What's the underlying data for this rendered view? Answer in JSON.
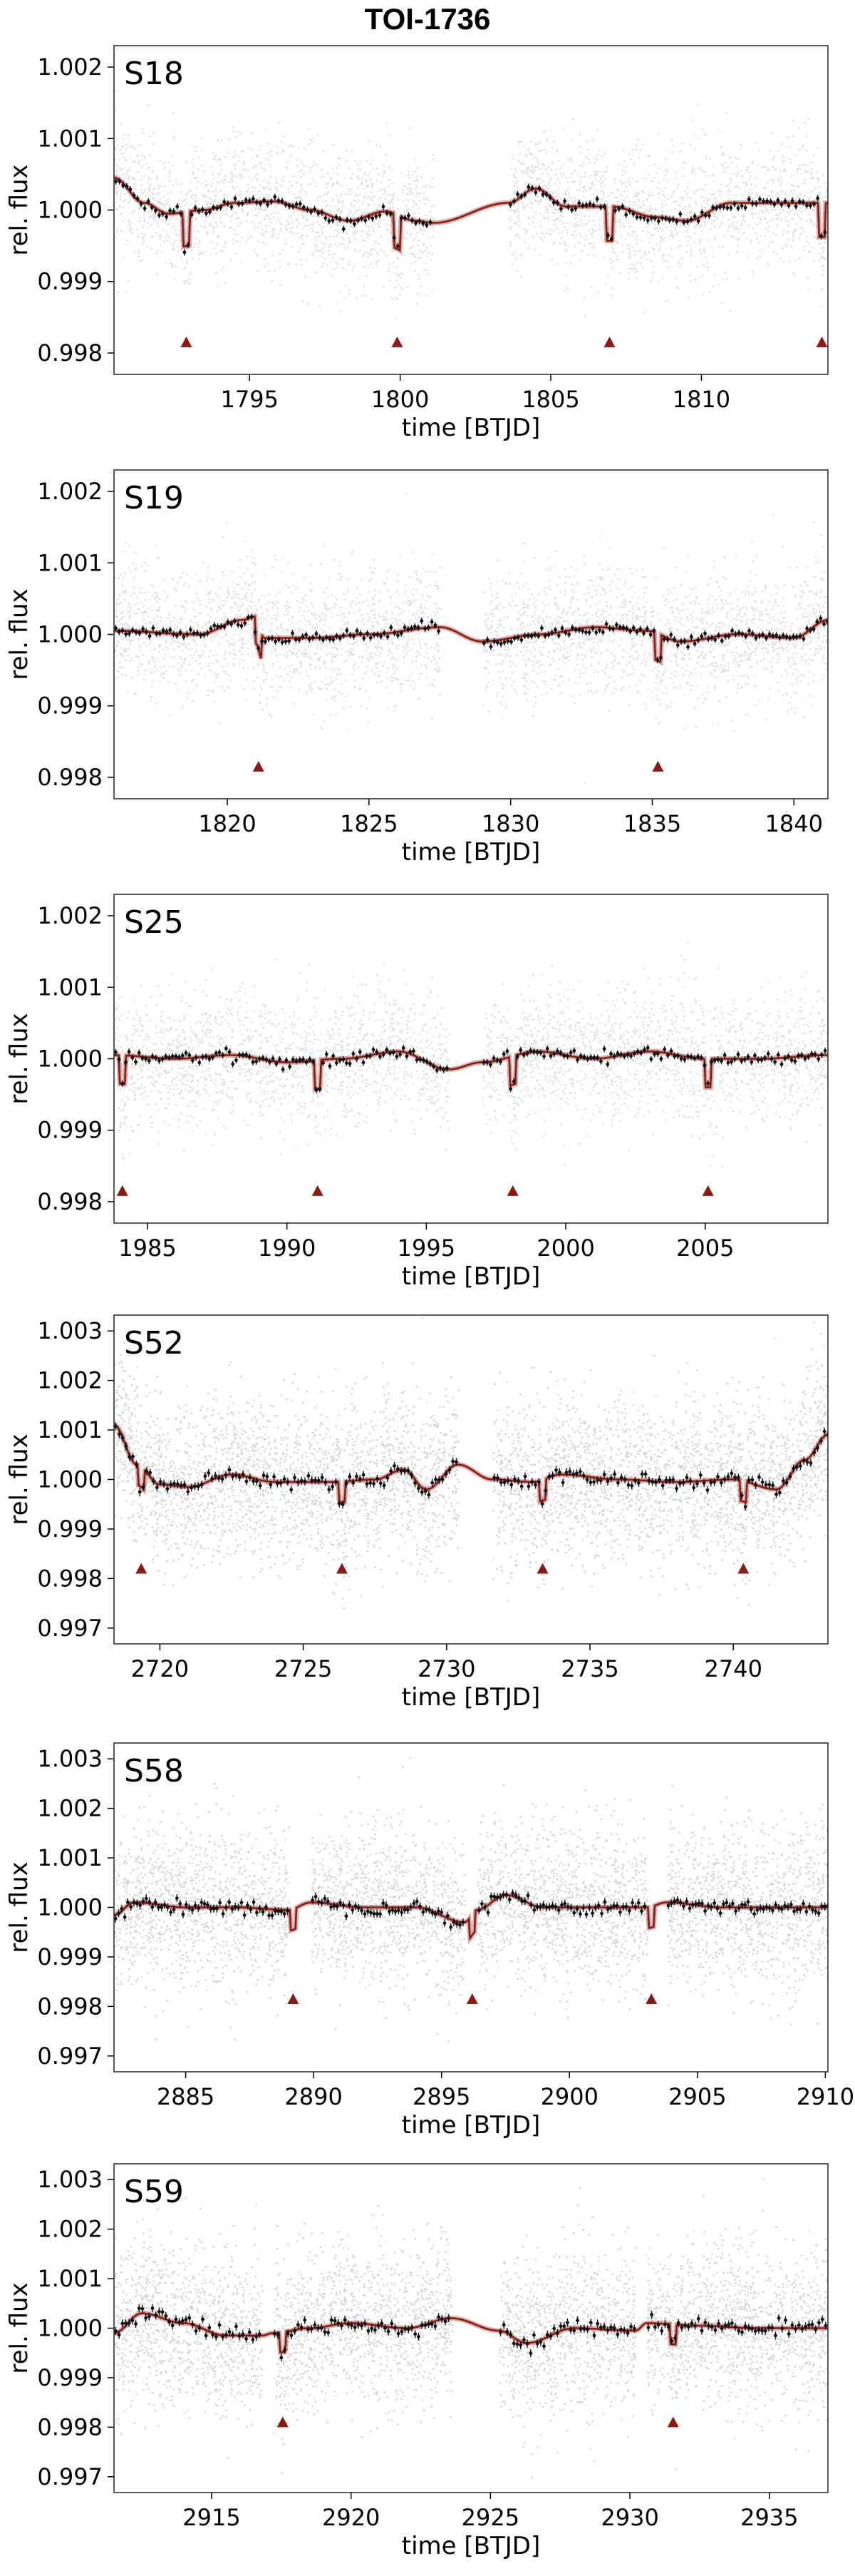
{
  "title": "TOI-1736",
  "colors": {
    "model": "#8b1a12",
    "transit_marker": "#8b1a12",
    "raw_points": "#9a9a9a",
    "binned_points": "#111111",
    "frame": "#333333"
  },
  "chart_data": [
    {
      "type": "scatter",
      "sector_label": "S18",
      "xlabel": "time [BTJD]",
      "ylabel": "rel. flux",
      "xlim": [
        1790.5,
        1814.2
      ],
      "ylim": [
        0.9977,
        1.0023
      ],
      "xticks": [
        1795,
        1800,
        1805,
        1810
      ],
      "yticks": [
        0.998,
        0.999,
        1.0,
        1.001,
        1.002
      ],
      "ytick_labels": [
        "0.998",
        "0.999",
        "1.000",
        "1.001",
        "1.002"
      ],
      "segments": [
        [
          1790.5,
          1801.1
        ],
        [
          1803.6,
          1814.2
        ]
      ],
      "raw_scatter_sigma": 0.00045,
      "transit_times": [
        1792.9,
        1799.9,
        1806.95,
        1814.0
      ],
      "transit_depth": 0.00048,
      "transit_marker_y": 0.99815,
      "trend_knots": [
        [
          1790.5,
          1.00045
        ],
        [
          1791.5,
          1.0001
        ],
        [
          1792.3,
          0.99995
        ],
        [
          1793.5,
          1.0
        ],
        [
          1794.5,
          1.0001
        ],
        [
          1795.8,
          1.00012
        ],
        [
          1797,
          1.0
        ],
        [
          1798.3,
          0.99985
        ],
        [
          1799.5,
          0.99998
        ],
        [
          1800.5,
          0.99985
        ],
        [
          1801.1,
          0.99982
        ],
        [
          1803.6,
          1.0001
        ],
        [
          1804.5,
          1.0003
        ],
        [
          1805.5,
          1.00005
        ],
        [
          1807,
          1.00005
        ],
        [
          1808.5,
          0.9999
        ],
        [
          1809.5,
          0.99985
        ],
        [
          1811,
          1.0001
        ],
        [
          1813,
          1.0001
        ],
        [
          1814.2,
          1.0001
        ]
      ]
    },
    {
      "type": "scatter",
      "sector_label": "S19",
      "xlabel": "time [BTJD]",
      "ylabel": "rel. flux",
      "xlim": [
        1816.0,
        1841.2
      ],
      "ylim": [
        0.9977,
        1.0023
      ],
      "xticks": [
        1820,
        1825,
        1830,
        1835,
        1840
      ],
      "yticks": [
        0.998,
        0.999,
        1.0,
        1.001,
        1.002
      ],
      "ytick_labels": [
        "0.998",
        "0.999",
        "1.000",
        "1.001",
        "1.002"
      ],
      "segments": [
        [
          1816.0,
          1827.5
        ],
        [
          1829.0,
          1841.2
        ]
      ],
      "raw_scatter_sigma": 0.00045,
      "transit_times": [
        1821.1,
        1835.2
      ],
      "transit_depth": 0.00038,
      "transit_marker_y": 0.99815,
      "trend_knots": [
        [
          1816,
          1.00005
        ],
        [
          1819,
          1.0
        ],
        [
          1820.5,
          1.0002
        ],
        [
          1821,
          1.00025
        ],
        [
          1821.3,
          0.99995
        ],
        [
          1823,
          0.99995
        ],
        [
          1825,
          1.0
        ],
        [
          1827.5,
          1.0001
        ],
        [
          1829,
          0.9999
        ],
        [
          1831,
          1.0
        ],
        [
          1833,
          1.0001
        ],
        [
          1834.8,
          1.00005
        ],
        [
          1836,
          0.9999
        ],
        [
          1838,
          1.0
        ],
        [
          1840,
          0.99995
        ],
        [
          1841.2,
          1.0002
        ]
      ]
    },
    {
      "type": "scatter",
      "sector_label": "S25",
      "xlabel": "time [BTJD]",
      "ylabel": "rel. flux",
      "xlim": [
        1983.8,
        2009.4
      ],
      "ylim": [
        0.9977,
        1.0023
      ],
      "xticks": [
        1985,
        1990,
        1995,
        2000,
        2005
      ],
      "yticks": [
        0.998,
        0.999,
        1.0,
        1.001,
        1.002
      ],
      "ytick_labels": [
        "0.998",
        "0.999",
        "1.000",
        "1.001",
        "1.002"
      ],
      "segments": [
        [
          1983.8,
          1995.8
        ],
        [
          1997.0,
          2009.4
        ]
      ],
      "raw_scatter_sigma": 0.00045,
      "transit_times": [
        1984.1,
        1991.1,
        1998.1,
        2005.1
      ],
      "transit_depth": 0.0004,
      "transit_marker_y": 0.99815,
      "trend_knots": [
        [
          1983.8,
          1.00005
        ],
        [
          1986,
          1.0
        ],
        [
          1988,
          1.00005
        ],
        [
          1990,
          0.99995
        ],
        [
          1992,
          1.0
        ],
        [
          1994,
          1.0001
        ],
        [
          1995.8,
          0.99985
        ],
        [
          1997,
          0.99995
        ],
        [
          1999,
          1.0001
        ],
        [
          2001,
          1.0
        ],
        [
          2003,
          1.0001
        ],
        [
          2005,
          1.0
        ],
        [
          2007,
          1.0
        ],
        [
          2009.4,
          1.00005
        ]
      ]
    },
    {
      "type": "scatter",
      "sector_label": "S52",
      "xlabel": "time [BTJD]",
      "ylabel": "rel. flux",
      "xlim": [
        2718.4,
        2743.3
      ],
      "ylim": [
        0.99668,
        1.00332
      ],
      "xticks": [
        2720,
        2725,
        2730,
        2735,
        2740
      ],
      "yticks": [
        0.997,
        0.998,
        0.999,
        1.0,
        1.001,
        1.002,
        1.003
      ],
      "ytick_labels": [
        "0.997",
        "0.998",
        "0.999",
        "1.000",
        "1.001",
        "1.002",
        "1.003"
      ],
      "segments": [
        [
          2718.4,
          2730.4
        ],
        [
          2731.6,
          2743.3
        ]
      ],
      "raw_scatter_sigma": 0.0008,
      "transit_times": [
        2719.35,
        2726.35,
        2733.35,
        2740.35
      ],
      "transit_depth": 0.00042,
      "transit_marker_y": 0.9982,
      "trend_knots": [
        [
          2718.4,
          1.0011
        ],
        [
          2719.2,
          1.0003
        ],
        [
          2720,
          0.9999
        ],
        [
          2721,
          0.99985
        ],
        [
          2722.5,
          1.0001
        ],
        [
          2724,
          0.99995
        ],
        [
          2726,
          0.99995
        ],
        [
          2727.5,
          1.0
        ],
        [
          2728.5,
          1.0002
        ],
        [
          2729.3,
          0.9998
        ],
        [
          2730.4,
          1.0003
        ],
        [
          2731.6,
          1.0
        ],
        [
          2733,
          0.99995
        ],
        [
          2734,
          1.0001
        ],
        [
          2736,
          1.0
        ],
        [
          2738,
          0.99995
        ],
        [
          2740,
          1.0
        ],
        [
          2741.5,
          0.9998
        ],
        [
          2742.5,
          1.0004
        ],
        [
          2743.3,
          1.0009
        ]
      ]
    },
    {
      "type": "scatter",
      "sector_label": "S58",
      "xlabel": "time [BTJD]",
      "ylabel": "rel. flux",
      "xlim": [
        2882.2,
        2910.1
      ],
      "ylim": [
        0.99668,
        1.00332
      ],
      "xticks": [
        2885,
        2890,
        2895,
        2900,
        2905,
        2910
      ],
      "yticks": [
        0.997,
        0.998,
        0.999,
        1.0,
        1.001,
        1.002,
        1.003
      ],
      "ytick_labels": [
        "0.997",
        "0.998",
        "0.999",
        "1.000",
        "1.001",
        "1.002",
        "1.003"
      ],
      "segments": [
        [
          2882.2,
          2889.0
        ],
        [
          2889.9,
          2895.9
        ],
        [
          2896.4,
          2903.0
        ],
        [
          2903.8,
          2910.1
        ]
      ],
      "raw_scatter_sigma": 0.0008,
      "transit_times": [
        2889.2,
        2896.2,
        2903.2
      ],
      "transit_depth": 0.00042,
      "transit_marker_y": 0.99815,
      "trend_knots": [
        [
          2882.2,
          0.99985
        ],
        [
          2883,
          1.0001
        ],
        [
          2885,
          1.0
        ],
        [
          2887,
          1.0
        ],
        [
          2889,
          0.99995
        ],
        [
          2889.9,
          1.0001
        ],
        [
          2892,
          1.0
        ],
        [
          2894,
          1.0
        ],
        [
          2895.9,
          0.9997
        ],
        [
          2896.4,
          0.99995
        ],
        [
          2897.5,
          1.00025
        ],
        [
          2899,
          1.0
        ],
        [
          2901,
          1.0
        ],
        [
          2903,
          1.0
        ],
        [
          2903.8,
          1.0001
        ],
        [
          2906,
          1.0
        ],
        [
          2908,
          1.0
        ],
        [
          2910.1,
          1.0
        ]
      ]
    },
    {
      "type": "scatter",
      "sector_label": "S59",
      "xlabel": "time [BTJD]",
      "ylabel": "rel. flux",
      "xlim": [
        2911.5,
        2937.1
      ],
      "ylim": [
        0.99668,
        1.00332
      ],
      "xticks": [
        2915,
        2920,
        2925,
        2930,
        2935
      ],
      "yticks": [
        0.997,
        0.998,
        0.999,
        1.0,
        1.001,
        1.002,
        1.003
      ],
      "ytick_labels": [
        "0.997",
        "0.998",
        "0.999",
        "1.000",
        "1.001",
        "1.002",
        "1.003"
      ],
      "segments": [
        [
          2911.5,
          2916.8
        ],
        [
          2917.2,
          2923.6
        ],
        [
          2925.3,
          2930.2
        ],
        [
          2930.6,
          2937.1
        ]
      ],
      "raw_scatter_sigma": 0.0008,
      "transit_times": [
        2917.55,
        2931.55
      ],
      "transit_depth": 0.0004,
      "transit_marker_y": 0.9981,
      "trend_knots": [
        [
          2911.5,
          0.9999
        ],
        [
          2912.5,
          1.0003
        ],
        [
          2914,
          1.0001
        ],
        [
          2915.5,
          0.99985
        ],
        [
          2916.8,
          0.99985
        ],
        [
          2917.2,
          0.9999
        ],
        [
          2918.5,
          1.0
        ],
        [
          2920,
          1.0001
        ],
        [
          2922,
          1.0
        ],
        [
          2923.6,
          1.0002
        ],
        [
          2925.3,
          0.99995
        ],
        [
          2926.3,
          0.9997
        ],
        [
          2928,
          1.0
        ],
        [
          2930.2,
          0.99995
        ],
        [
          2930.6,
          1.0001
        ],
        [
          2932.5,
          1.00005
        ],
        [
          2934.5,
          1.0
        ],
        [
          2937.1,
          1.0
        ]
      ]
    }
  ]
}
